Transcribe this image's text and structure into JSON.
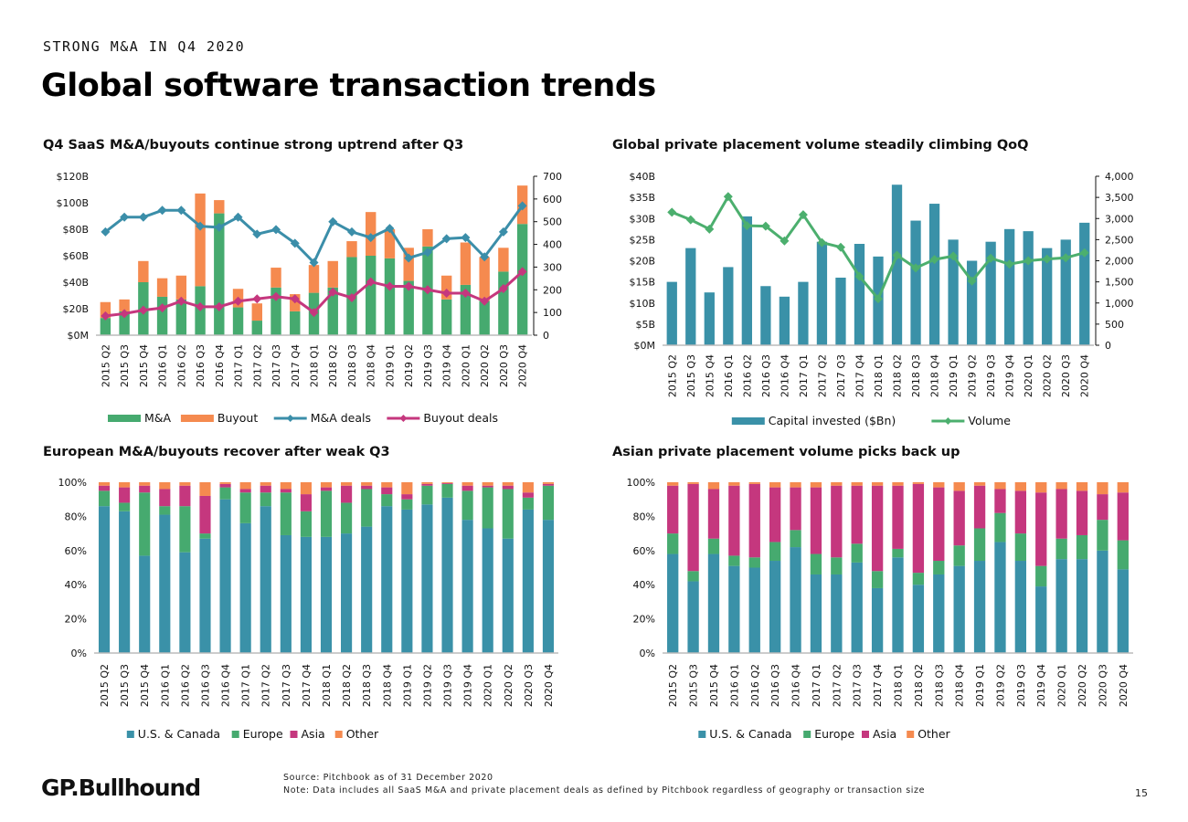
{
  "header": {
    "eyebrow": "STRONG M&A IN Q4 2020",
    "title": "Global software transaction trends"
  },
  "footer": {
    "logo": "GP.Bullhound",
    "source": "Source: Pitchbook as of 31 December 2020",
    "note": "Note: Data includes all SaaS M&A and private placement deals as defined by Pitchbook regardless of geography or transaction size",
    "page_number": "15"
  },
  "colors": {
    "teal": "#3a91a8",
    "green": "#46aa6f",
    "orange": "#f58a4f",
    "magenta": "#c5377e",
    "line_teal": "#3b8ea9",
    "line_green": "#4caf6e"
  },
  "chart_data": [
    {
      "id": "saas-ma-buyouts",
      "type": "bar",
      "title": "Q4 SaaS M&A/buyouts continue strong uptrend after Q3",
      "categories": [
        "2015 Q2",
        "2015 Q3",
        "2015 Q4",
        "2016 Q1",
        "2016 Q2",
        "2016 Q3",
        "2016 Q4",
        "2017 Q1",
        "2017 Q2",
        "2017 Q3",
        "2017 Q4",
        "2018 Q1",
        "2018 Q2",
        "2018 Q3",
        "2018 Q4",
        "2019 Q1",
        "2019 Q2",
        "2019 Q3",
        "2019 Q4",
        "2020 Q1",
        "2020 Q2",
        "2020 Q3",
        "2020 Q4"
      ],
      "stacked": true,
      "series": [
        {
          "name": "M&A",
          "kind": "bar",
          "axis": "left",
          "color": "#46aa6f",
          "values": [
            13,
            18,
            40,
            29,
            27,
            37,
            92,
            21,
            11,
            36,
            18,
            32,
            36,
            59,
            60,
            58,
            41,
            67,
            27,
            38,
            26,
            48,
            84
          ]
        },
        {
          "name": "Buyout",
          "kind": "bar",
          "axis": "left",
          "color": "#f58a4f",
          "values": [
            12,
            9,
            16,
            14,
            18,
            70,
            10,
            14,
            13,
            15,
            13,
            21,
            20,
            12,
            33,
            22,
            25,
            13,
            18,
            32,
            33,
            18,
            29
          ]
        },
        {
          "name": "M&A deals",
          "kind": "line",
          "axis": "right",
          "color": "#3b8ea9",
          "values": [
            455,
            520,
            520,
            550,
            550,
            480,
            475,
            520,
            445,
            465,
            405,
            320,
            500,
            455,
            430,
            470,
            340,
            365,
            425,
            430,
            345,
            455,
            570
          ]
        },
        {
          "name": "Buyout deals",
          "kind": "line",
          "axis": "right",
          "color": "#c5377e",
          "values": [
            85,
            95,
            110,
            120,
            150,
            125,
            125,
            150,
            160,
            170,
            160,
            100,
            190,
            165,
            235,
            215,
            215,
            200,
            185,
            185,
            150,
            205,
            280
          ]
        }
      ],
      "y_left": {
        "ticks": [
          "$0M",
          "$20B",
          "$40B",
          "$60B",
          "$80B",
          "$100B",
          "$120B"
        ],
        "min": 0,
        "max": 120
      },
      "y_right": {
        "ticks": [
          "0",
          "100",
          "200",
          "300",
          "400",
          "500",
          "600",
          "700"
        ],
        "min": 0,
        "max": 700
      },
      "legend": [
        "M&A",
        "Buyout",
        "M&A deals",
        "Buyout deals"
      ],
      "legend_position": "bottom"
    },
    {
      "id": "global-private-placement",
      "type": "bar",
      "title": "Global private placement volume steadily climbing QoQ",
      "categories": [
        "2015 Q2",
        "2015 Q3",
        "2015 Q4",
        "2016 Q1",
        "2016 Q2",
        "2016 Q3",
        "2016 Q4",
        "2017 Q1",
        "2017 Q2",
        "2017 Q3",
        "2017 Q4",
        "2018 Q1",
        "2018 Q2",
        "2018 Q3",
        "2018 Q4",
        "2019 Q1",
        "2019 Q2",
        "2019 Q3",
        "2019 Q4",
        "2020 Q1",
        "2020 Q2",
        "2020 Q3",
        "2020 Q4"
      ],
      "stacked": false,
      "series": [
        {
          "name": "Capital invested ($Bn)",
          "kind": "bar",
          "axis": "left",
          "color": "#3a91a8",
          "values": [
            15,
            23,
            12.5,
            18.5,
            30.5,
            14,
            11.5,
            15,
            24.5,
            16,
            24,
            21,
            38,
            29.5,
            33.5,
            25,
            20,
            24.5,
            27.5,
            27,
            23,
            25,
            29
          ]
        },
        {
          "name": "Volume",
          "kind": "line",
          "axis": "right",
          "color": "#4caf6e",
          "values": [
            3150,
            2970,
            2750,
            3520,
            2830,
            2820,
            2470,
            3090,
            2430,
            2320,
            1630,
            1100,
            2130,
            1830,
            2030,
            2110,
            1520,
            2060,
            1920,
            2000,
            2040,
            2070,
            2190
          ]
        }
      ],
      "y_left": {
        "ticks": [
          "$0M",
          "$5B",
          "$10B",
          "$15B",
          "$20B",
          "$25B",
          "$30B",
          "$35B",
          "$40B"
        ],
        "min": 0,
        "max": 40
      },
      "y_right": {
        "ticks": [
          "0",
          "500",
          "1,000",
          "1,500",
          "2,000",
          "2,500",
          "3,000",
          "3,500",
          "4,000"
        ],
        "min": 0,
        "max": 4000
      },
      "legend": [
        "Capital invested ($Bn)",
        "Volume"
      ],
      "legend_position": "bottom"
    },
    {
      "id": "european-ma-buyouts",
      "type": "bar",
      "title": "European M&A/buyouts recover after weak Q3",
      "categories": [
        "2015 Q2",
        "2015 Q3",
        "2015 Q4",
        "2016 Q1",
        "2016 Q2",
        "2016 Q3",
        "2016 Q4",
        "2017 Q1",
        "2017 Q2",
        "2017 Q3",
        "2017 Q4",
        "2018 Q1",
        "2018 Q2",
        "2018 Q3",
        "2018 Q4",
        "2019 Q1",
        "2019 Q2",
        "2019 Q3",
        "2019 Q4",
        "2020 Q1",
        "2020 Q2",
        "2020 Q3",
        "2020 Q4"
      ],
      "stacked": true,
      "percent": true,
      "series": [
        {
          "name": "U.S. & Canada",
          "color": "#3a91a8",
          "values": [
            86,
            83,
            57,
            81,
            59,
            67,
            90,
            76,
            86,
            69,
            68,
            68,
            70,
            74,
            86,
            84,
            87,
            91,
            78,
            73,
            67,
            84,
            78
          ]
        },
        {
          "name": "Europe",
          "color": "#46aa6f",
          "values": [
            9,
            5,
            37,
            5,
            27,
            3,
            7,
            18,
            8,
            25,
            15,
            27,
            18,
            22,
            7,
            6,
            11,
            8,
            17,
            24,
            29,
            7,
            20
          ]
        },
        {
          "name": "Asia",
          "color": "#c5377e",
          "values": [
            3,
            9,
            4,
            10,
            12,
            22,
            2,
            2,
            4,
            2,
            10,
            2,
            10,
            2,
            4,
            3,
            1,
            0.5,
            3,
            1,
            2,
            3,
            1
          ]
        },
        {
          "name": "Other",
          "color": "#f58a4f",
          "values": [
            2,
            3,
            2,
            4,
            2,
            8,
            1,
            4,
            2,
            4,
            7,
            3,
            2,
            2,
            3,
            7,
            1,
            0.5,
            2,
            2,
            2,
            6,
            1
          ]
        }
      ],
      "y_left": {
        "ticks": [
          "0%",
          "20%",
          "40%",
          "60%",
          "80%",
          "100%"
        ],
        "min": 0,
        "max": 100
      },
      "legend": [
        "U.S. & Canada",
        "Europe",
        "Asia",
        "Other"
      ],
      "legend_position": "bottom"
    },
    {
      "id": "asian-private-placement",
      "type": "bar",
      "title": "Asian private placement volume picks back up",
      "categories": [
        "2015 Q2",
        "2015 Q3",
        "2015 Q4",
        "2016 Q1",
        "2016 Q2",
        "2016 Q3",
        "2016 Q4",
        "2017 Q1",
        "2017 Q2",
        "2017 Q3",
        "2017 Q4",
        "2018 Q1",
        "2018 Q2",
        "2018 Q3",
        "2018 Q4",
        "2019 Q1",
        "2019 Q2",
        "2019 Q3",
        "2019 Q4",
        "2020 Q1",
        "2020 Q2",
        "2020 Q3",
        "2020 Q4"
      ],
      "stacked": true,
      "percent": true,
      "series": [
        {
          "name": "U.S. & Canada",
          "color": "#3a91a8",
          "values": [
            58,
            42,
            58,
            51,
            50,
            54,
            62,
            46,
            46,
            53,
            38,
            56,
            40,
            46,
            51,
            54,
            65,
            54,
            39,
            55,
            55,
            60,
            49
          ]
        },
        {
          "name": "Europe",
          "color": "#46aa6f",
          "values": [
            12,
            6,
            9,
            6,
            6,
            11,
            10,
            12,
            10,
            11,
            10,
            5,
            7,
            8,
            12,
            19,
            17,
            16,
            12,
            12,
            14,
            18,
            17
          ]
        },
        {
          "name": "Asia",
          "color": "#c5377e",
          "values": [
            28,
            51,
            29,
            41,
            43,
            32,
            25,
            39,
            42,
            34,
            50,
            37,
            52,
            43,
            32,
            25,
            14,
            25,
            43,
            29,
            26,
            15,
            28
          ]
        },
        {
          "name": "Other",
          "color": "#f58a4f",
          "values": [
            2,
            1,
            4,
            2,
            1,
            3,
            3,
            3,
            2,
            2,
            2,
            2,
            1,
            3,
            5,
            2,
            4,
            5,
            6,
            4,
            5,
            7,
            6
          ]
        }
      ],
      "y_left": {
        "ticks": [
          "0%",
          "20%",
          "40%",
          "60%",
          "80%",
          "100%"
        ],
        "min": 0,
        "max": 100
      },
      "legend": [
        "U.S. & Canada",
        "Europe",
        "Asia",
        "Other"
      ],
      "legend_position": "bottom"
    }
  ]
}
